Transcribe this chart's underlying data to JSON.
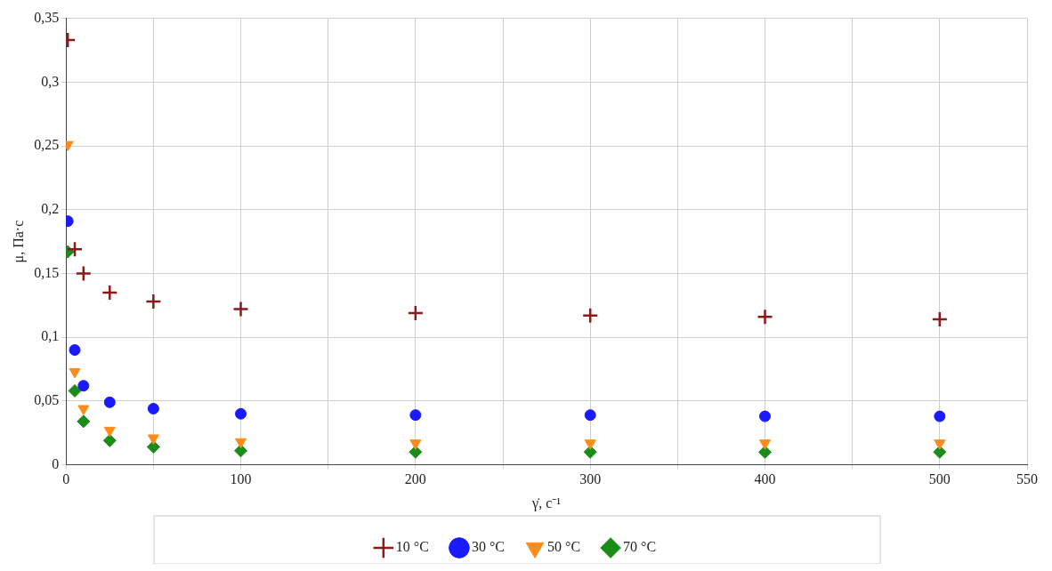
{
  "chart_data": {
    "type": "scatter",
    "xlabel": "γ̇, с⁻¹",
    "ylabel": "μ, Па·с",
    "x": [
      1,
      5,
      10,
      25,
      50,
      100,
      200,
      300,
      400,
      500
    ],
    "series": [
      {
        "name": "10 °C",
        "color": "#8b1a1a",
        "marker": "cross",
        "values": [
          0.333,
          0.169,
          0.15,
          0.135,
          0.128,
          0.122,
          0.119,
          0.117,
          0.116,
          0.114
        ]
      },
      {
        "name": "30 °C",
        "color": "#1a1aff",
        "marker": "circle",
        "values": [
          0.191,
          0.09,
          0.062,
          0.049,
          0.044,
          0.04,
          0.039,
          0.039,
          0.038,
          0.038
        ]
      },
      {
        "name": "50 °C",
        "color": "#ff8c1a",
        "marker": "triangle",
        "values": [
          0.251,
          0.073,
          0.044,
          0.027,
          0.021,
          0.018,
          0.017,
          0.017,
          0.017,
          0.017
        ]
      },
      {
        "name": "70 °C",
        "color": "#1a8c1a",
        "marker": "diamond",
        "values": [
          0.167,
          0.058,
          0.034,
          0.019,
          0.014,
          0.011,
          0.01,
          0.01,
          0.01,
          0.01
        ]
      }
    ],
    "xlim": [
      0,
      550
    ],
    "xticks": [
      0,
      {
        "value": 50,
        "label": null
      },
      100,
      {
        "value": 150,
        "label": null
      },
      200,
      {
        "value": 250,
        "label": null
      },
      300,
      {
        "value": 350,
        "label": null
      },
      400,
      {
        "value": 450,
        "label": null
      },
      500,
      550
    ],
    "ylim": [
      0,
      0.35
    ],
    "yticks": [
      0,
      {
        "value": 0.05,
        "label": "0,05"
      },
      {
        "value": 0.1,
        "label": "0,1"
      },
      {
        "value": 0.15,
        "label": "0,15"
      },
      {
        "value": 0.2,
        "label": "0,2"
      },
      {
        "value": 0.25,
        "label": "0,25"
      },
      {
        "value": 0.3,
        "label": "0,3"
      },
      {
        "value": 0.35,
        "label": "0,35"
      }
    ],
    "grid": true,
    "legend": "bottom"
  }
}
